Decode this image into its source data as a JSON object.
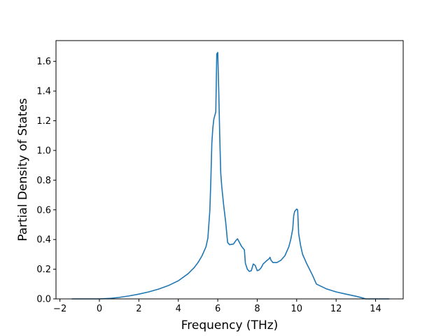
{
  "chart_data": {
    "type": "line",
    "xlabel": "Frequency (THz)",
    "ylabel": "Partial Density of States",
    "xlim": [
      -2.2,
      15.4
    ],
    "ylim": [
      0.0,
      1.74
    ],
    "x_ticks": [
      -2,
      0,
      2,
      4,
      6,
      8,
      10,
      12,
      14
    ],
    "y_ticks": [
      0.0,
      0.2,
      0.4,
      0.6,
      0.8,
      1.0,
      1.2,
      1.4,
      1.6
    ],
    "x_tick_labels": [
      "−2",
      "0",
      "2",
      "4",
      "6",
      "8",
      "10",
      "12",
      "14"
    ],
    "y_tick_labels": [
      "0.0",
      "0.2",
      "0.4",
      "0.6",
      "0.8",
      "1.0",
      "1.2",
      "1.4",
      "1.6"
    ],
    "grid": false,
    "line_color": "#1f77b4",
    "series": [
      {
        "x": [
          -1.4,
          -0.5,
          0.0,
          0.5,
          1.0,
          1.5,
          2.0,
          2.5,
          3.0,
          3.5,
          4.0,
          4.5,
          4.8,
          5.0,
          5.2,
          5.4,
          5.5,
          5.6,
          5.65,
          5.7,
          5.75,
          5.8,
          5.9,
          5.95,
          6.0,
          6.05,
          6.1,
          6.15,
          6.2,
          6.3,
          6.4,
          6.5,
          6.6,
          6.8,
          6.9,
          7.0,
          7.1,
          7.2,
          7.35,
          7.4,
          7.5,
          7.6,
          7.7,
          7.8,
          7.9,
          8.0,
          8.1,
          8.2,
          8.3,
          8.5,
          8.6,
          8.65,
          8.7,
          8.8,
          9.0,
          9.2,
          9.4,
          9.6,
          9.7,
          9.8,
          9.85,
          9.9,
          10.0,
          10.05,
          10.1,
          10.2,
          10.3,
          10.5,
          10.8,
          11.0,
          11.5,
          12.0,
          12.5,
          13.0,
          13.3,
          13.5,
          14.0,
          14.5,
          14.7
        ],
        "y": [
          0.0,
          0.0,
          0.0,
          0.003,
          0.01,
          0.02,
          0.032,
          0.047,
          0.066,
          0.09,
          0.122,
          0.17,
          0.21,
          0.245,
          0.29,
          0.35,
          0.41,
          0.6,
          0.8,
          1.05,
          1.15,
          1.21,
          1.26,
          1.65,
          1.66,
          1.4,
          1.1,
          0.85,
          0.76,
          0.63,
          0.52,
          0.38,
          0.365,
          0.37,
          0.39,
          0.405,
          0.38,
          0.355,
          0.33,
          0.24,
          0.2,
          0.185,
          0.19,
          0.235,
          0.225,
          0.19,
          0.195,
          0.21,
          0.235,
          0.26,
          0.27,
          0.28,
          0.26,
          0.245,
          0.245,
          0.26,
          0.29,
          0.35,
          0.4,
          0.47,
          0.56,
          0.59,
          0.605,
          0.6,
          0.44,
          0.36,
          0.3,
          0.24,
          0.16,
          0.1,
          0.068,
          0.047,
          0.032,
          0.018,
          0.008,
          0.0,
          0.0,
          0.0,
          0.0
        ]
      }
    ]
  }
}
